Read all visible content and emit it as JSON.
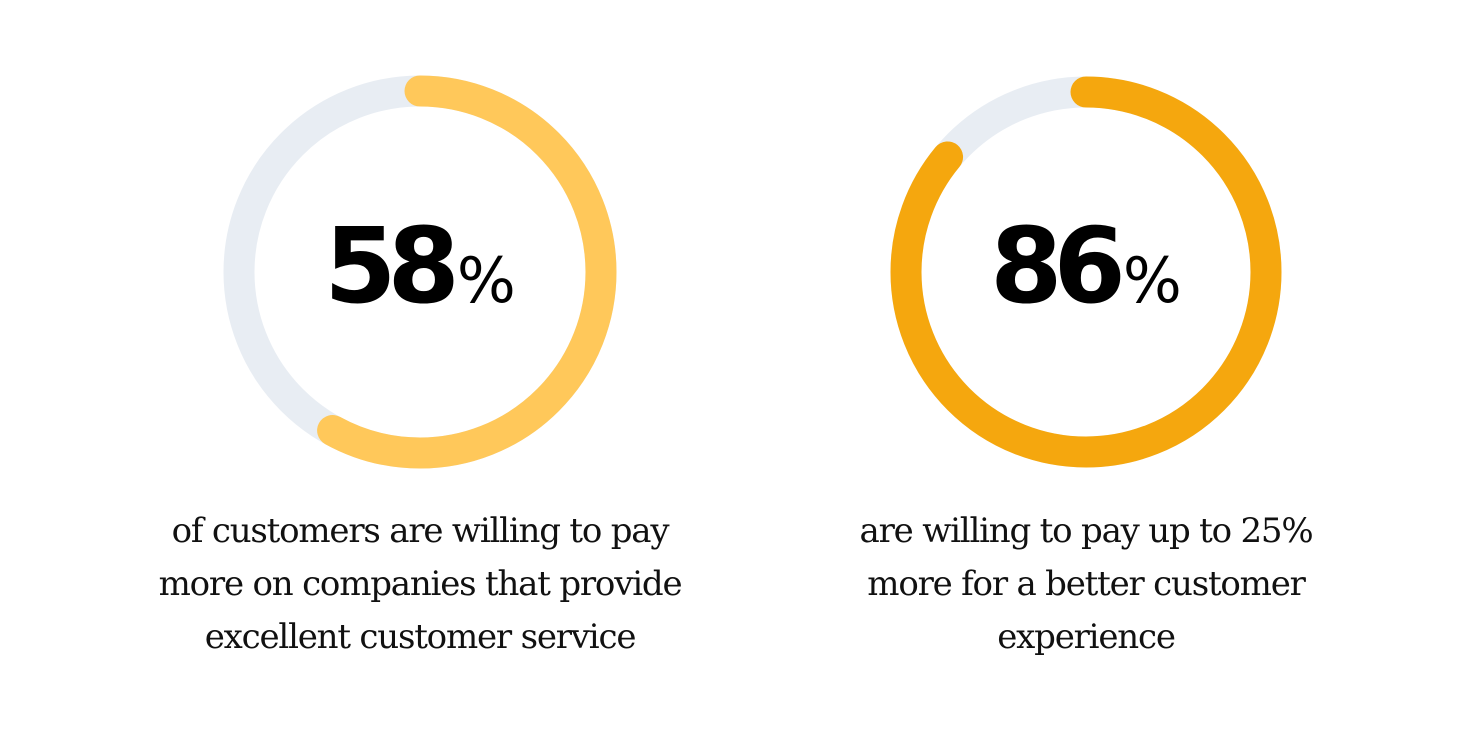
{
  "chart_data": [
    {
      "type": "pie",
      "subtype": "donut-progress",
      "title": "58%",
      "values": [
        58,
        42
      ],
      "categories": [
        "willing to pay more",
        "remainder"
      ],
      "value_label": "58",
      "unit": "%",
      "caption": "of customers are willing to pay more on companies that provide excellent customer service",
      "colors": {
        "progress": "#FFC85A",
        "track": "#E8EDF3"
      }
    },
    {
      "type": "pie",
      "subtype": "donut-progress",
      "title": "86%",
      "values": [
        86,
        14
      ],
      "categories": [
        "willing to pay up to 25% more",
        "remainder"
      ],
      "value_label": "86",
      "unit": "%",
      "caption": "are willing to pay up to 25% more for a better customer experience",
      "colors": {
        "progress": "#F5A70E",
        "track": "#E8EDF3"
      }
    }
  ],
  "stats": [
    {
      "number": "58",
      "unit": "%",
      "percent": 58,
      "progress_color": "#FFC85A",
      "track_color": "#E8EDF3",
      "caption_lines": [
        "of customers are willing to pay",
        "more on companies that provide",
        "excellent customer service"
      ]
    },
    {
      "number": "86",
      "unit": "%",
      "percent": 86,
      "progress_color": "#F5A70E",
      "track_color": "#E8EDF3",
      "caption_lines": [
        "are willing to pay up to 25%",
        "more for a better customer",
        "experience"
      ]
    }
  ]
}
